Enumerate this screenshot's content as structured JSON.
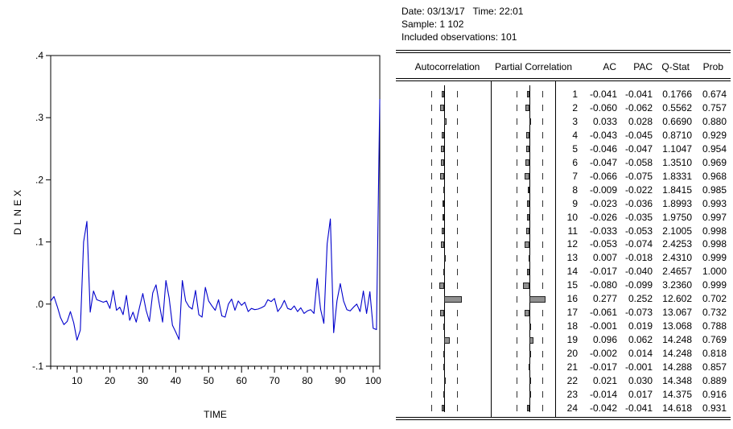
{
  "right_panel": {
    "meta": {
      "date_line": "Date: 03/13/17   Time: 22:01",
      "sample_line": "Sample: 1 102",
      "obs_line": "Included observations: 101"
    }
  },
  "chart_data": [
    {
      "type": "line",
      "title": "",
      "xlabel": "TIME",
      "ylabel": "DLNEX",
      "series_name": "DLNEX",
      "line_color": "#0000cc",
      "xlim": [
        2,
        102
      ],
      "ylim": [
        -0.1,
        0.4
      ],
      "x_ticks": [
        10,
        20,
        30,
        40,
        50,
        60,
        70,
        80,
        90,
        100
      ],
      "x_minor_step": 2,
      "y_ticks": [
        {
          "v": 0.4,
          "label": ".4"
        },
        {
          "v": 0.3,
          "label": ".3"
        },
        {
          "v": 0.2,
          "label": ".2"
        },
        {
          "v": 0.1,
          "label": ".1"
        },
        {
          "v": 0.0,
          "label": ".0"
        },
        {
          "v": -0.1,
          "label": "-.1"
        }
      ],
      "x_start": 2,
      "values": [
        0.005,
        0.012,
        -0.004,
        -0.022,
        -0.033,
        -0.028,
        -0.012,
        -0.03,
        -0.058,
        -0.042,
        0.1,
        0.133,
        -0.013,
        0.021,
        0.007,
        0.005,
        0.003,
        0.005,
        -0.007,
        0.022,
        -0.01,
        -0.005,
        -0.017,
        0.014,
        -0.026,
        -0.013,
        -0.029,
        -0.005,
        0.017,
        -0.01,
        -0.028,
        0.018,
        0.031,
        0.0,
        -0.029,
        0.038,
        0.01,
        -0.034,
        -0.045,
        -0.057,
        0.038,
        0.005,
        -0.004,
        -0.008,
        0.022,
        -0.017,
        -0.021,
        0.027,
        0.005,
        -0.003,
        -0.01,
        0.007,
        -0.019,
        -0.021,
        0.0,
        0.008,
        -0.01,
        0.005,
        -0.002,
        0.003,
        -0.012,
        -0.007,
        -0.009,
        -0.008,
        -0.006,
        -0.003,
        0.007,
        0.004,
        0.009,
        -0.012,
        -0.005,
        0.006,
        -0.007,
        -0.009,
        -0.003,
        -0.012,
        -0.006,
        -0.015,
        -0.011,
        -0.009,
        -0.015,
        0.041,
        -0.008,
        -0.031,
        0.097,
        0.137,
        -0.046,
        0.005,
        0.033,
        0.005,
        -0.009,
        -0.011,
        -0.005,
        0.0,
        -0.012,
        0.021,
        -0.015,
        0.02,
        -0.039,
        -0.041,
        0.33
      ]
    },
    {
      "type": "table",
      "title": "Correlogram",
      "columns": [
        "Autocorrelation",
        "Partial Correlation",
        "AC",
        "PAC",
        "Q-Stat",
        "Prob"
      ],
      "confidence_band": 0.199,
      "rows": [
        [
          1,
          -0.041,
          -0.041,
          "0.1766",
          "0.674"
        ],
        [
          2,
          -0.06,
          -0.062,
          "0.5562",
          "0.757"
        ],
        [
          3,
          0.033,
          0.028,
          "0.6690",
          "0.880"
        ],
        [
          4,
          -0.043,
          -0.045,
          "0.8710",
          "0.929"
        ],
        [
          5,
          -0.046,
          -0.047,
          "1.1047",
          "0.954"
        ],
        [
          6,
          -0.047,
          -0.058,
          "1.3510",
          "0.969"
        ],
        [
          7,
          -0.066,
          -0.075,
          "1.8331",
          "0.968"
        ],
        [
          8,
          -0.009,
          -0.022,
          "1.8415",
          "0.985"
        ],
        [
          9,
          -0.023,
          -0.036,
          "1.8993",
          "0.993"
        ],
        [
          10,
          -0.026,
          -0.035,
          "1.9750",
          "0.997"
        ],
        [
          11,
          -0.033,
          -0.053,
          "2.1005",
          "0.998"
        ],
        [
          12,
          -0.053,
          -0.074,
          "2.4253",
          "0.998"
        ],
        [
          13,
          0.007,
          -0.018,
          "2.4310",
          "0.999"
        ],
        [
          14,
          -0.017,
          -0.04,
          "2.4657",
          "1.000"
        ],
        [
          15,
          -0.08,
          -0.099,
          "3.2360",
          "0.999"
        ],
        [
          16,
          0.277,
          0.252,
          "12.602",
          "0.702"
        ],
        [
          17,
          -0.061,
          -0.073,
          "13.067",
          "0.732"
        ],
        [
          18,
          -0.001,
          0.019,
          "13.068",
          "0.788"
        ],
        [
          19,
          0.096,
          0.062,
          "14.248",
          "0.769"
        ],
        [
          20,
          -0.002,
          0.014,
          "14.248",
          "0.818"
        ],
        [
          21,
          -0.017,
          -0.001,
          "14.288",
          "0.857"
        ],
        [
          22,
          0.021,
          0.03,
          "14.348",
          "0.889"
        ],
        [
          23,
          -0.014,
          0.017,
          "14.375",
          "0.916"
        ],
        [
          24,
          -0.042,
          -0.041,
          "14.618",
          "0.931"
        ]
      ]
    }
  ]
}
